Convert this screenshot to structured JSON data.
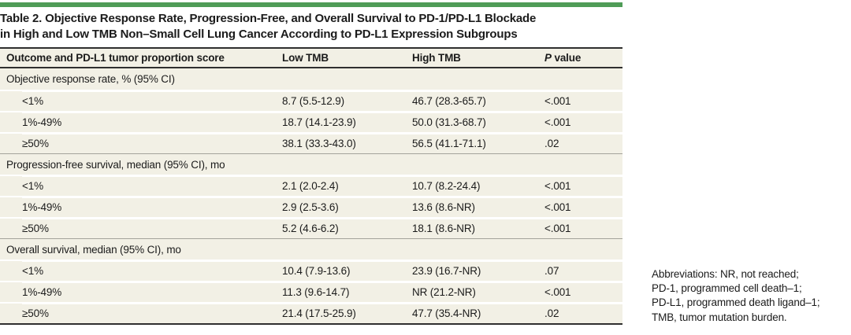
{
  "colors": {
    "accent_green": "#4f9c57",
    "row_beige": "#f2f0e5",
    "rule_dark": "#2f2f2f",
    "rule_gray": "#a3a39b"
  },
  "table": {
    "title_line1": "Table 2. Objective Response Rate, Progression-Free, and Overall Survival to PD-1/PD-L1 Blockade",
    "title_line2": "in High and Low TMB Non–Small Cell Lung Cancer According to PD-L1 Expression Subgroups",
    "columns": {
      "outcome": "Outcome and PD-L1 tumor proportion score",
      "low_tmb": "Low TMB",
      "high_tmb": "High TMB",
      "p_italic": "P",
      "p_rest": "value"
    },
    "sections": [
      {
        "header": "Objective response rate, % (95% CI)",
        "rows": [
          {
            "label": "<1%",
            "low_tmb": "8.7 (5.5-12.9)",
            "high_tmb": "46.7 (28.3-65.7)",
            "p_value": "<.001"
          },
          {
            "label": "1%-49%",
            "low_tmb": "18.7 (14.1-23.9)",
            "high_tmb": "50.0 (31.3-68.7)",
            "p_value": "<.001"
          },
          {
            "label": "≥50%",
            "low_tmb": "38.1 (33.3-43.0)",
            "high_tmb": "56.5 (41.1-71.1)",
            "p_value": ".02"
          }
        ]
      },
      {
        "header": "Progression-free survival, median (95% CI), mo",
        "rows": [
          {
            "label": "<1%",
            "low_tmb": "2.1 (2.0-2.4)",
            "high_tmb": "10.7 (8.2-24.4)",
            "p_value": "<.001"
          },
          {
            "label": "1%-49%",
            "low_tmb": "2.9 (2.5-3.6)",
            "high_tmb": "13.6 (8.6-NR)",
            "p_value": "<.001"
          },
          {
            "label": "≥50%",
            "low_tmb": "5.2 (4.6-6.2)",
            "high_tmb": "18.1 (8.6-NR)",
            "p_value": "<.001"
          }
        ]
      },
      {
        "header": "Overall survival, median (95% CI), mo",
        "rows": [
          {
            "label": "<1%",
            "low_tmb": "10.4 (7.9-13.6)",
            "high_tmb": "23.9 (16.7-NR)",
            "p_value": ".07"
          },
          {
            "label": "1%-49%",
            "low_tmb": "11.3 (9.6-14.7)",
            "high_tmb": "NR (21.2-NR)",
            "p_value": "<.001"
          },
          {
            "label": "≥50%",
            "low_tmb": "21.4 (17.5-25.9)",
            "high_tmb": "47.7 (35.4-NR)",
            "p_value": ".02"
          }
        ]
      }
    ]
  },
  "footnote": {
    "lines": [
      "Abbreviations: NR, not reached;",
      "PD-1, programmed cell death–1;",
      "PD-L1, programmed death ligand–1;",
      "TMB, tumor mutation burden."
    ]
  }
}
